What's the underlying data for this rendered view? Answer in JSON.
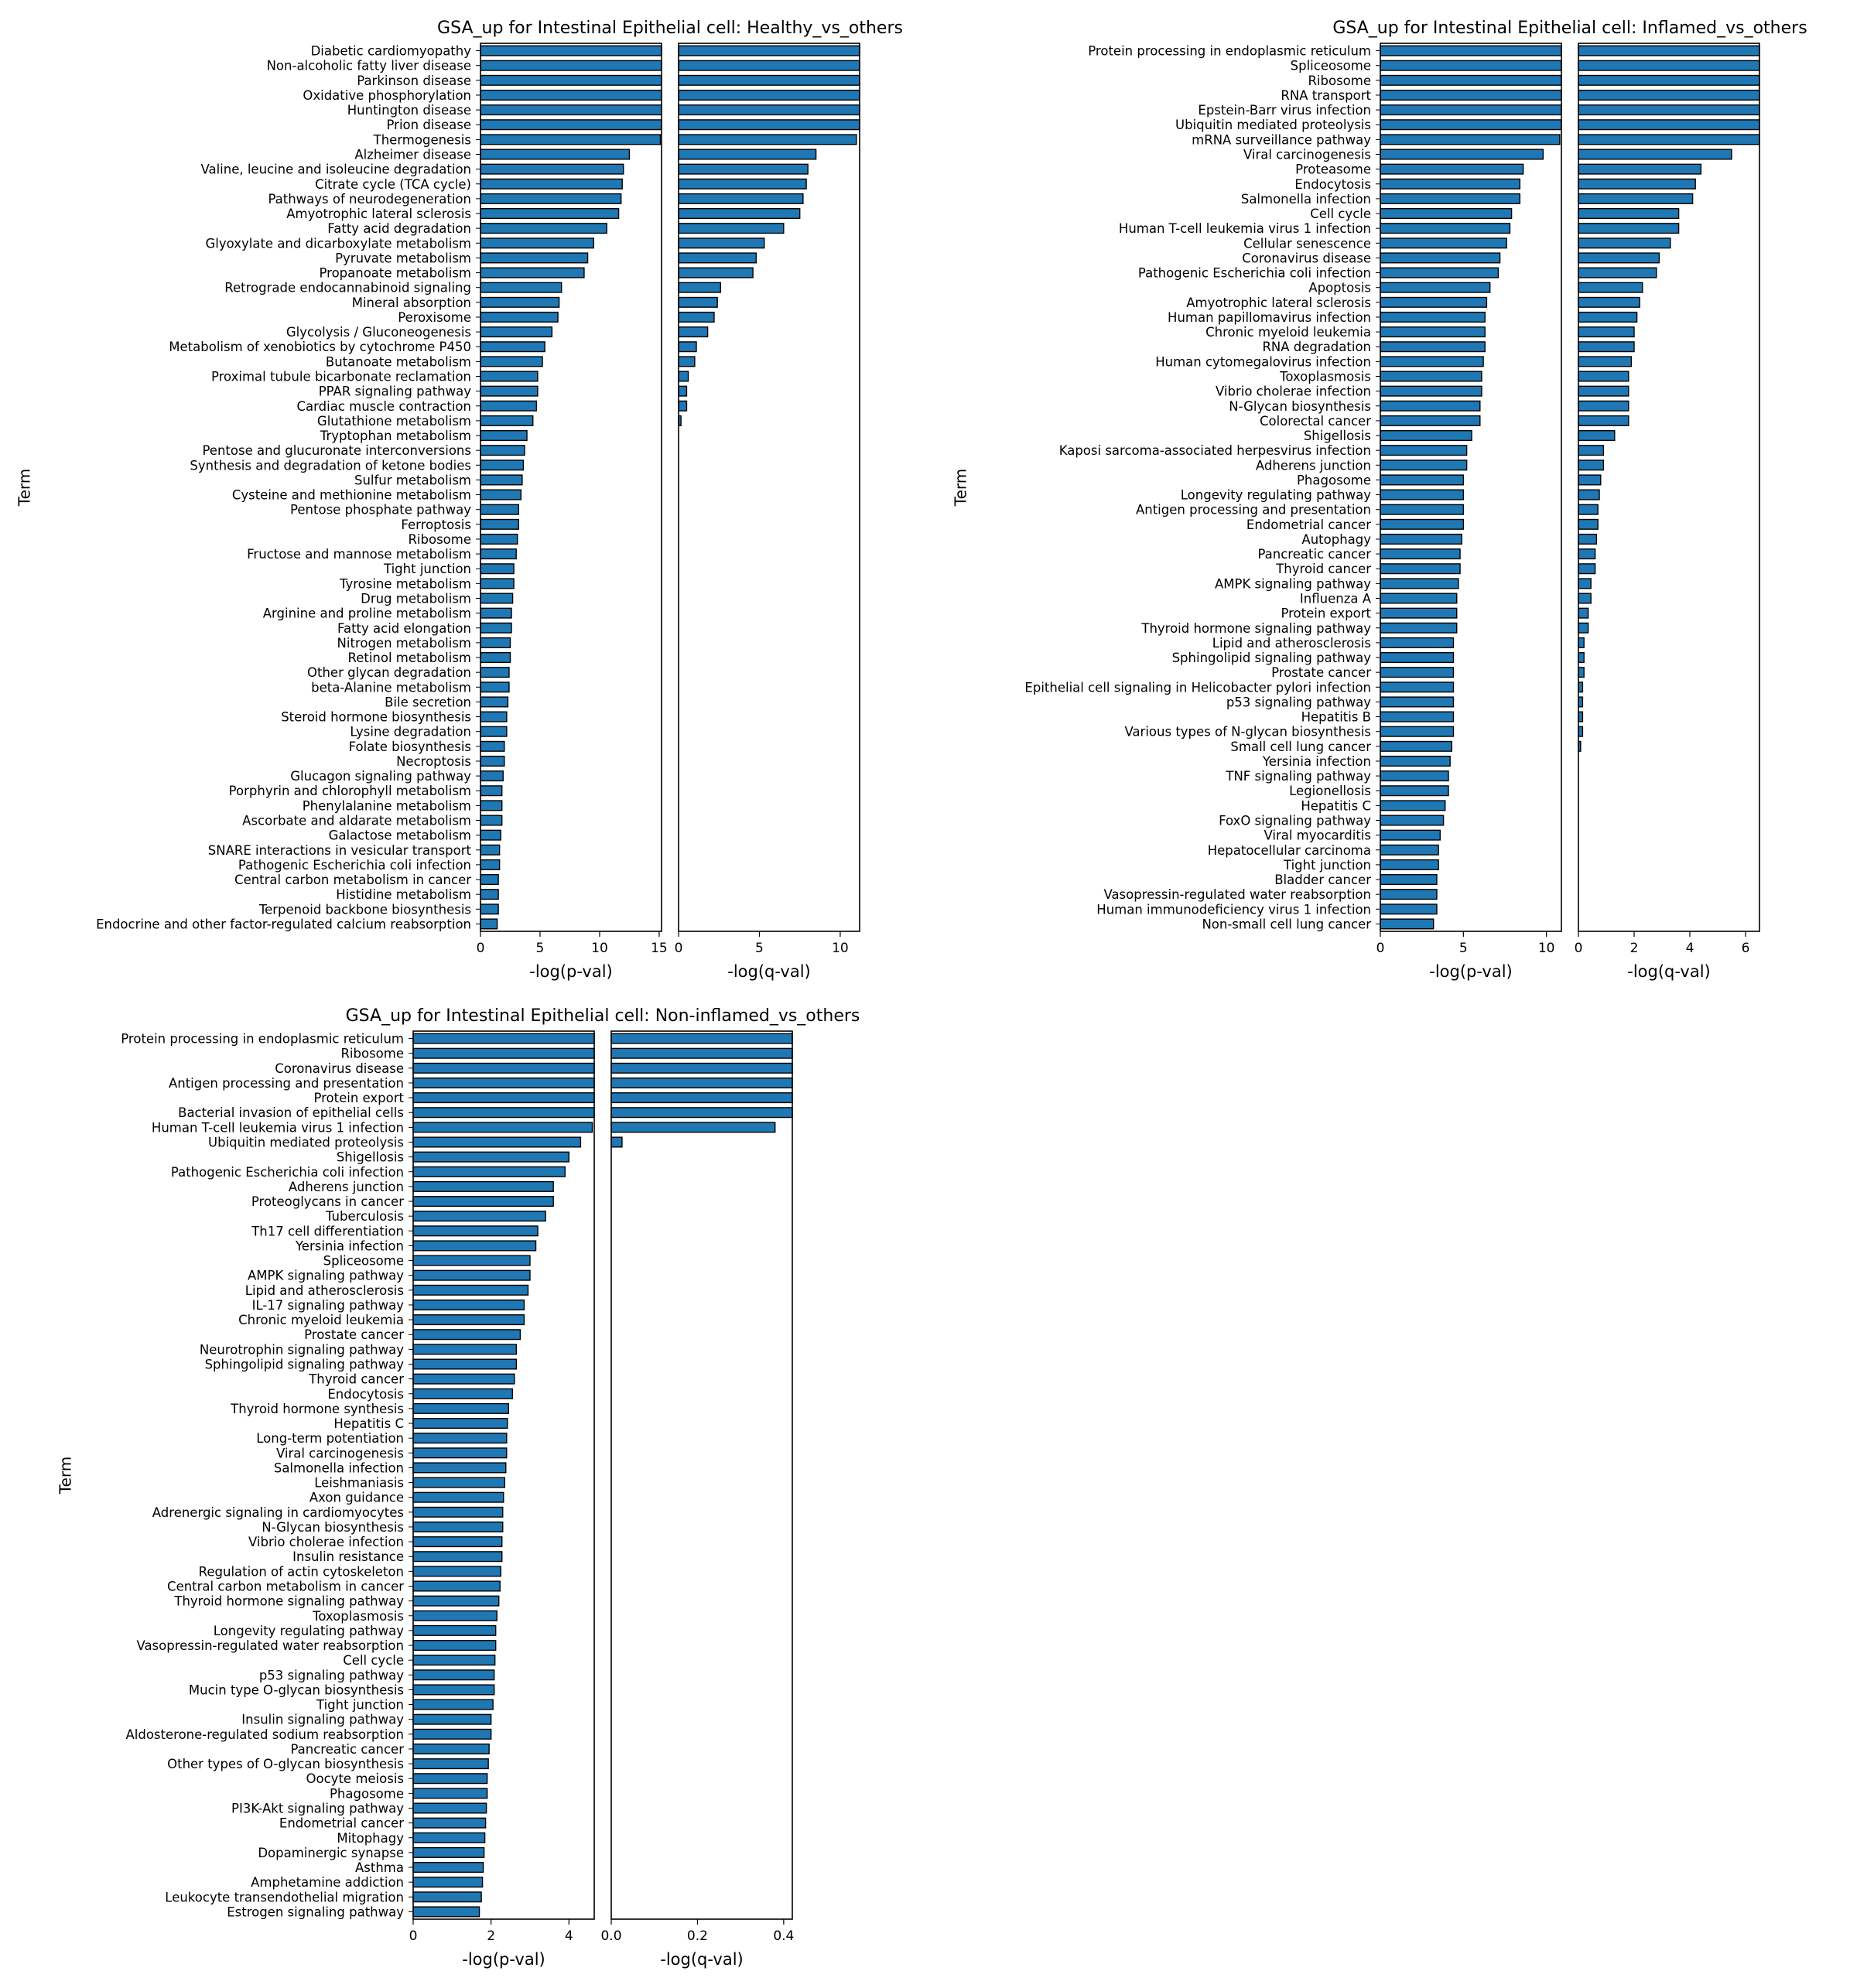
{
  "bar_color": "#1f77b4",
  "edge_color": "#000000",
  "chart_data": [
    {
      "type": "bar",
      "orientation": "horizontal",
      "title": "GSA_up for Intestinal Epithelial cell: Healthy_vs_others",
      "ylabel": "Term",
      "categories": [
        "Diabetic cardiomyopathy",
        "Non-alcoholic fatty liver disease",
        "Parkinson disease",
        "Oxidative phosphorylation",
        "Huntington disease",
        "Prion disease",
        "Thermogenesis",
        "Alzheimer disease",
        "Valine, leucine and isoleucine degradation",
        "Citrate cycle (TCA cycle)",
        "Pathways of neurodegeneration",
        "Amyotrophic lateral sclerosis",
        "Fatty acid degradation",
        "Glyoxylate and dicarboxylate metabolism",
        "Pyruvate metabolism",
        "Propanoate metabolism",
        "Retrograde endocannabinoid signaling",
        "Mineral absorption",
        "Peroxisome",
        "Glycolysis / Gluconeogenesis",
        "Metabolism of xenobiotics by cytochrome P450",
        "Butanoate metabolism",
        "Proximal tubule bicarbonate reclamation",
        "PPAR signaling pathway",
        "Cardiac muscle contraction",
        "Glutathione metabolism",
        "Tryptophan metabolism",
        "Pentose and glucuronate interconversions",
        "Synthesis and degradation of ketone bodies",
        "Sulfur metabolism",
        "Cysteine and methionine metabolism",
        "Pentose phosphate pathway",
        "Ferroptosis",
        "Ribosome",
        "Fructose and mannose metabolism",
        "Tight junction",
        "Tyrosine metabolism",
        "Drug metabolism",
        "Arginine and proline metabolism",
        "Fatty acid elongation",
        "Nitrogen metabolism",
        "Retinol metabolism",
        "Other glycan degradation",
        "beta-Alanine metabolism",
        "Bile secretion",
        "Steroid hormone biosynthesis",
        "Lysine degradation",
        "Folate biosynthesis",
        "Necroptosis",
        "Glucagon signaling pathway",
        "Porphyrin and chlorophyll metabolism",
        "Phenylalanine metabolism",
        "Ascorbate and aldarate metabolism",
        "Galactose metabolism",
        "SNARE interactions in vesicular transport",
        "Pathogenic Escherichia coli infection",
        "Central carbon metabolism in cancer",
        "Histidine metabolism",
        "Terpenoid backbone biosynthesis",
        "Endocrine and other factor-regulated calcium reabsorption"
      ],
      "panels": [
        {
          "xlabel": "-log(p-val)",
          "xlim": [
            0,
            15.2
          ],
          "ticks": [
            0,
            5,
            10,
            15
          ],
          "values": [
            15.2,
            15.2,
            15.2,
            15.2,
            15.2,
            15.2,
            15.1,
            12.5,
            12.0,
            11.9,
            11.8,
            11.6,
            10.6,
            9.5,
            9.0,
            8.7,
            6.8,
            6.6,
            6.5,
            6.0,
            5.4,
            5.2,
            4.8,
            4.8,
            4.7,
            4.4,
            3.9,
            3.7,
            3.6,
            3.5,
            3.4,
            3.2,
            3.2,
            3.1,
            3.0,
            2.8,
            2.8,
            2.7,
            2.6,
            2.6,
            2.5,
            2.5,
            2.4,
            2.4,
            2.3,
            2.2,
            2.2,
            2.0,
            2.0,
            1.9,
            1.8,
            1.8,
            1.8,
            1.7,
            1.6,
            1.6,
            1.5,
            1.5,
            1.5,
            1.4
          ]
        },
        {
          "xlabel": "-log(q-val)",
          "xlim": [
            0,
            11.2
          ],
          "ticks": [
            0,
            5,
            10
          ],
          "values": [
            11.2,
            11.2,
            11.2,
            11.2,
            11.2,
            11.2,
            11.0,
            8.5,
            8.0,
            7.9,
            7.7,
            7.5,
            6.5,
            5.3,
            4.8,
            4.6,
            2.6,
            2.4,
            2.2,
            1.8,
            1.1,
            1.0,
            0.6,
            0.5,
            0.5,
            0.15,
            0,
            0,
            0,
            0,
            0,
            0,
            0,
            0,
            0,
            0,
            0,
            0,
            0,
            0,
            0,
            0,
            0,
            0,
            0,
            0,
            0,
            0,
            0,
            0,
            0,
            0,
            0,
            0,
            0,
            0,
            0,
            0,
            0,
            0
          ]
        }
      ]
    },
    {
      "type": "bar",
      "orientation": "horizontal",
      "title": "GSA_up for Intestinal Epithelial cell: Inflamed_vs_others",
      "ylabel": "Term",
      "categories": [
        "Protein processing in endoplasmic reticulum",
        "Spliceosome",
        "Ribosome",
        "RNA transport",
        "Epstein-Barr virus infection",
        "Ubiquitin mediated proteolysis",
        "mRNA surveillance pathway",
        "Viral carcinogenesis",
        "Proteasome",
        "Endocytosis",
        "Salmonella infection",
        "Cell cycle",
        "Human T-cell leukemia virus 1 infection",
        "Cellular senescence",
        "Coronavirus disease",
        "Pathogenic Escherichia coli infection",
        "Apoptosis",
        "Amyotrophic lateral sclerosis",
        "Human papillomavirus infection",
        "Chronic myeloid leukemia",
        "RNA degradation",
        "Human cytomegalovirus infection",
        "Toxoplasmosis",
        "Vibrio cholerae infection",
        "N-Glycan biosynthesis",
        "Colorectal cancer",
        "Shigellosis",
        "Kaposi sarcoma-associated herpesvirus infection",
        "Adherens junction",
        "Phagosome",
        "Longevity regulating pathway",
        "Antigen processing and presentation",
        "Endometrial cancer",
        "Autophagy",
        "Pancreatic cancer",
        "Thyroid cancer",
        "AMPK signaling pathway",
        "Influenza A",
        "Protein export",
        "Thyroid hormone signaling pathway",
        "Lipid and atherosclerosis",
        "Sphingolipid signaling pathway",
        "Prostate cancer",
        "Epithelial cell signaling in Helicobacter pylori infection",
        "p53 signaling pathway",
        "Hepatitis B",
        "Various types of N-glycan biosynthesis",
        "Small cell lung cancer",
        "Yersinia infection",
        "TNF signaling pathway",
        "Legionellosis",
        "Hepatitis C",
        "FoxO signaling pathway",
        "Viral myocarditis",
        "Hepatocellular carcinoma",
        "Tight junction",
        "Bladder cancer",
        "Vasopressin-regulated water reabsorption",
        "Human immunodeficiency virus 1 infection",
        "Non-small cell lung cancer"
      ],
      "panels": [
        {
          "xlabel": "-log(p-val)",
          "xlim": [
            0,
            10.9
          ],
          "ticks": [
            0,
            5,
            10
          ],
          "values": [
            10.9,
            10.9,
            10.9,
            10.9,
            10.9,
            10.9,
            10.8,
            9.8,
            8.6,
            8.4,
            8.4,
            7.9,
            7.8,
            7.6,
            7.2,
            7.1,
            6.6,
            6.4,
            6.3,
            6.3,
            6.3,
            6.2,
            6.1,
            6.1,
            6.0,
            6.0,
            5.5,
            5.2,
            5.2,
            5.0,
            5.0,
            5.0,
            5.0,
            4.9,
            4.8,
            4.8,
            4.7,
            4.6,
            4.6,
            4.6,
            4.4,
            4.4,
            4.4,
            4.4,
            4.4,
            4.4,
            4.4,
            4.3,
            4.2,
            4.1,
            4.1,
            3.9,
            3.8,
            3.6,
            3.5,
            3.5,
            3.4,
            3.4,
            3.4,
            3.2
          ]
        },
        {
          "xlabel": "-log(q-val)",
          "xlim": [
            0,
            6.5
          ],
          "ticks": [
            0,
            2,
            4,
            6
          ],
          "values": [
            6.5,
            6.5,
            6.5,
            6.5,
            6.5,
            6.5,
            6.5,
            5.5,
            4.4,
            4.2,
            4.1,
            3.6,
            3.6,
            3.3,
            2.9,
            2.8,
            2.3,
            2.2,
            2.1,
            2.0,
            2.0,
            1.9,
            1.8,
            1.8,
            1.8,
            1.8,
            1.3,
            0.9,
            0.9,
            0.8,
            0.75,
            0.7,
            0.7,
            0.65,
            0.6,
            0.6,
            0.45,
            0.45,
            0.35,
            0.35,
            0.2,
            0.2,
            0.2,
            0.15,
            0.15,
            0.15,
            0.15,
            0.08,
            0,
            0,
            0,
            0,
            0,
            0,
            0,
            0,
            0,
            0,
            0,
            0
          ]
        }
      ]
    },
    {
      "type": "bar",
      "orientation": "horizontal",
      "title": "GSA_up for Intestinal Epithelial cell: Non-inflamed_vs_others",
      "ylabel": "Term",
      "categories": [
        "Protein processing in endoplasmic reticulum",
        "Ribosome",
        "Coronavirus disease",
        "Antigen processing and presentation",
        "Protein export",
        "Bacterial invasion of epithelial cells",
        "Human T-cell leukemia virus 1 infection",
        "Ubiquitin mediated proteolysis",
        "Shigellosis",
        "Pathogenic Escherichia coli infection",
        "Adherens junction",
        "Proteoglycans in cancer",
        "Tuberculosis",
        "Th17 cell differentiation",
        "Yersinia infection",
        "Spliceosome",
        "AMPK signaling pathway",
        "Lipid and atherosclerosis",
        "IL-17 signaling pathway",
        "Chronic myeloid leukemia",
        "Prostate cancer",
        "Neurotrophin signaling pathway",
        "Sphingolipid signaling pathway",
        "Thyroid cancer",
        "Endocytosis",
        "Thyroid hormone synthesis",
        "Hepatitis C",
        "Long-term potentiation",
        "Viral carcinogenesis",
        "Salmonella infection",
        "Leishmaniasis",
        "Axon guidance",
        "Adrenergic signaling in cardiomyocytes",
        "N-Glycan biosynthesis",
        "Vibrio cholerae infection",
        "Insulin resistance",
        "Regulation of actin cytoskeleton",
        "Central carbon metabolism in cancer",
        "Thyroid hormone signaling pathway",
        "Toxoplasmosis",
        "Longevity regulating pathway",
        "Vasopressin-regulated water reabsorption",
        "Cell cycle",
        "p53 signaling pathway",
        "Mucin type O-glycan biosynthesis",
        "Tight junction",
        "Insulin signaling pathway",
        "Aldosterone-regulated sodium reabsorption",
        "Pancreatic cancer",
        "Other types of O-glycan biosynthesis",
        "Oocyte meiosis",
        "Phagosome",
        "PI3K-Akt signaling pathway",
        "Endometrial cancer",
        "Mitophagy",
        "Dopaminergic synapse",
        "Asthma",
        "Amphetamine addiction",
        "Leukocyte transendothelial migration",
        "Estrogen signaling pathway"
      ],
      "panels": [
        {
          "xlabel": "-log(p-val)",
          "xlim": [
            0,
            4.65
          ],
          "ticks": [
            0,
            2,
            4
          ],
          "values": [
            4.65,
            4.65,
            4.65,
            4.65,
            4.65,
            4.65,
            4.6,
            4.3,
            4.0,
            3.9,
            3.6,
            3.6,
            3.4,
            3.2,
            3.15,
            3.0,
            3.0,
            2.95,
            2.85,
            2.85,
            2.75,
            2.65,
            2.65,
            2.6,
            2.55,
            2.45,
            2.42,
            2.4,
            2.4,
            2.38,
            2.35,
            2.32,
            2.3,
            2.3,
            2.28,
            2.28,
            2.25,
            2.23,
            2.2,
            2.15,
            2.12,
            2.12,
            2.1,
            2.08,
            2.08,
            2.05,
            2.0,
            2.0,
            1.95,
            1.93,
            1.9,
            1.9,
            1.88,
            1.86,
            1.84,
            1.82,
            1.8,
            1.78,
            1.75,
            1.7
          ]
        },
        {
          "xlabel": "-log(q-val)",
          "xlim": [
            0,
            0.42
          ],
          "ticks": [
            0.0,
            0.2,
            0.4
          ],
          "values": [
            0.42,
            0.42,
            0.42,
            0.42,
            0.42,
            0.42,
            0.38,
            0.025,
            0,
            0,
            0,
            0,
            0,
            0,
            0,
            0,
            0,
            0,
            0,
            0,
            0,
            0,
            0,
            0,
            0,
            0,
            0,
            0,
            0,
            0,
            0,
            0,
            0,
            0,
            0,
            0,
            0,
            0,
            0,
            0,
            0,
            0,
            0,
            0,
            0,
            0,
            0,
            0,
            0,
            0,
            0,
            0,
            0,
            0,
            0,
            0,
            0,
            0,
            0,
            0
          ]
        }
      ]
    }
  ]
}
